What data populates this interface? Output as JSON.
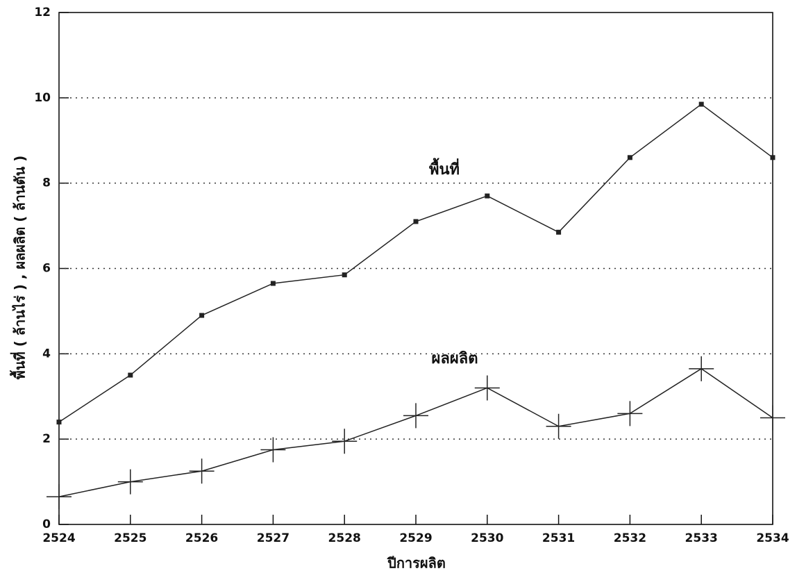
{
  "chart_data": {
    "type": "line",
    "x_label": "ปีการผลิต",
    "y_label": "พื้นที่ ( ล้านไร่ ) , ผลผลิต ( ล้านตัน )",
    "x": [
      2524,
      2525,
      2526,
      2527,
      2528,
      2529,
      2530,
      2531,
      2532,
      2533,
      2534
    ],
    "xlim": [
      2524,
      2534
    ],
    "xticks": [
      2524,
      2525,
      2526,
      2527,
      2528,
      2529,
      2530,
      2531,
      2532,
      2533,
      2534
    ],
    "ylim": [
      0,
      12
    ],
    "yticks": [
      0,
      2,
      4,
      6,
      8,
      10,
      12
    ],
    "grid": true,
    "series": [
      {
        "name": "พื้นที่",
        "color": "#222222",
        "marker": "square",
        "values": [
          2.4,
          3.5,
          4.9,
          5.65,
          5.85,
          7.1,
          7.7,
          6.85,
          8.6,
          9.85,
          8.6
        ]
      },
      {
        "name": "ผลผลิต",
        "color": "#222222",
        "marker": "plus",
        "values": [
          0.65,
          1.0,
          1.25,
          1.75,
          1.95,
          2.55,
          3.2,
          2.3,
          2.6,
          3.65,
          2.5
        ]
      }
    ]
  }
}
